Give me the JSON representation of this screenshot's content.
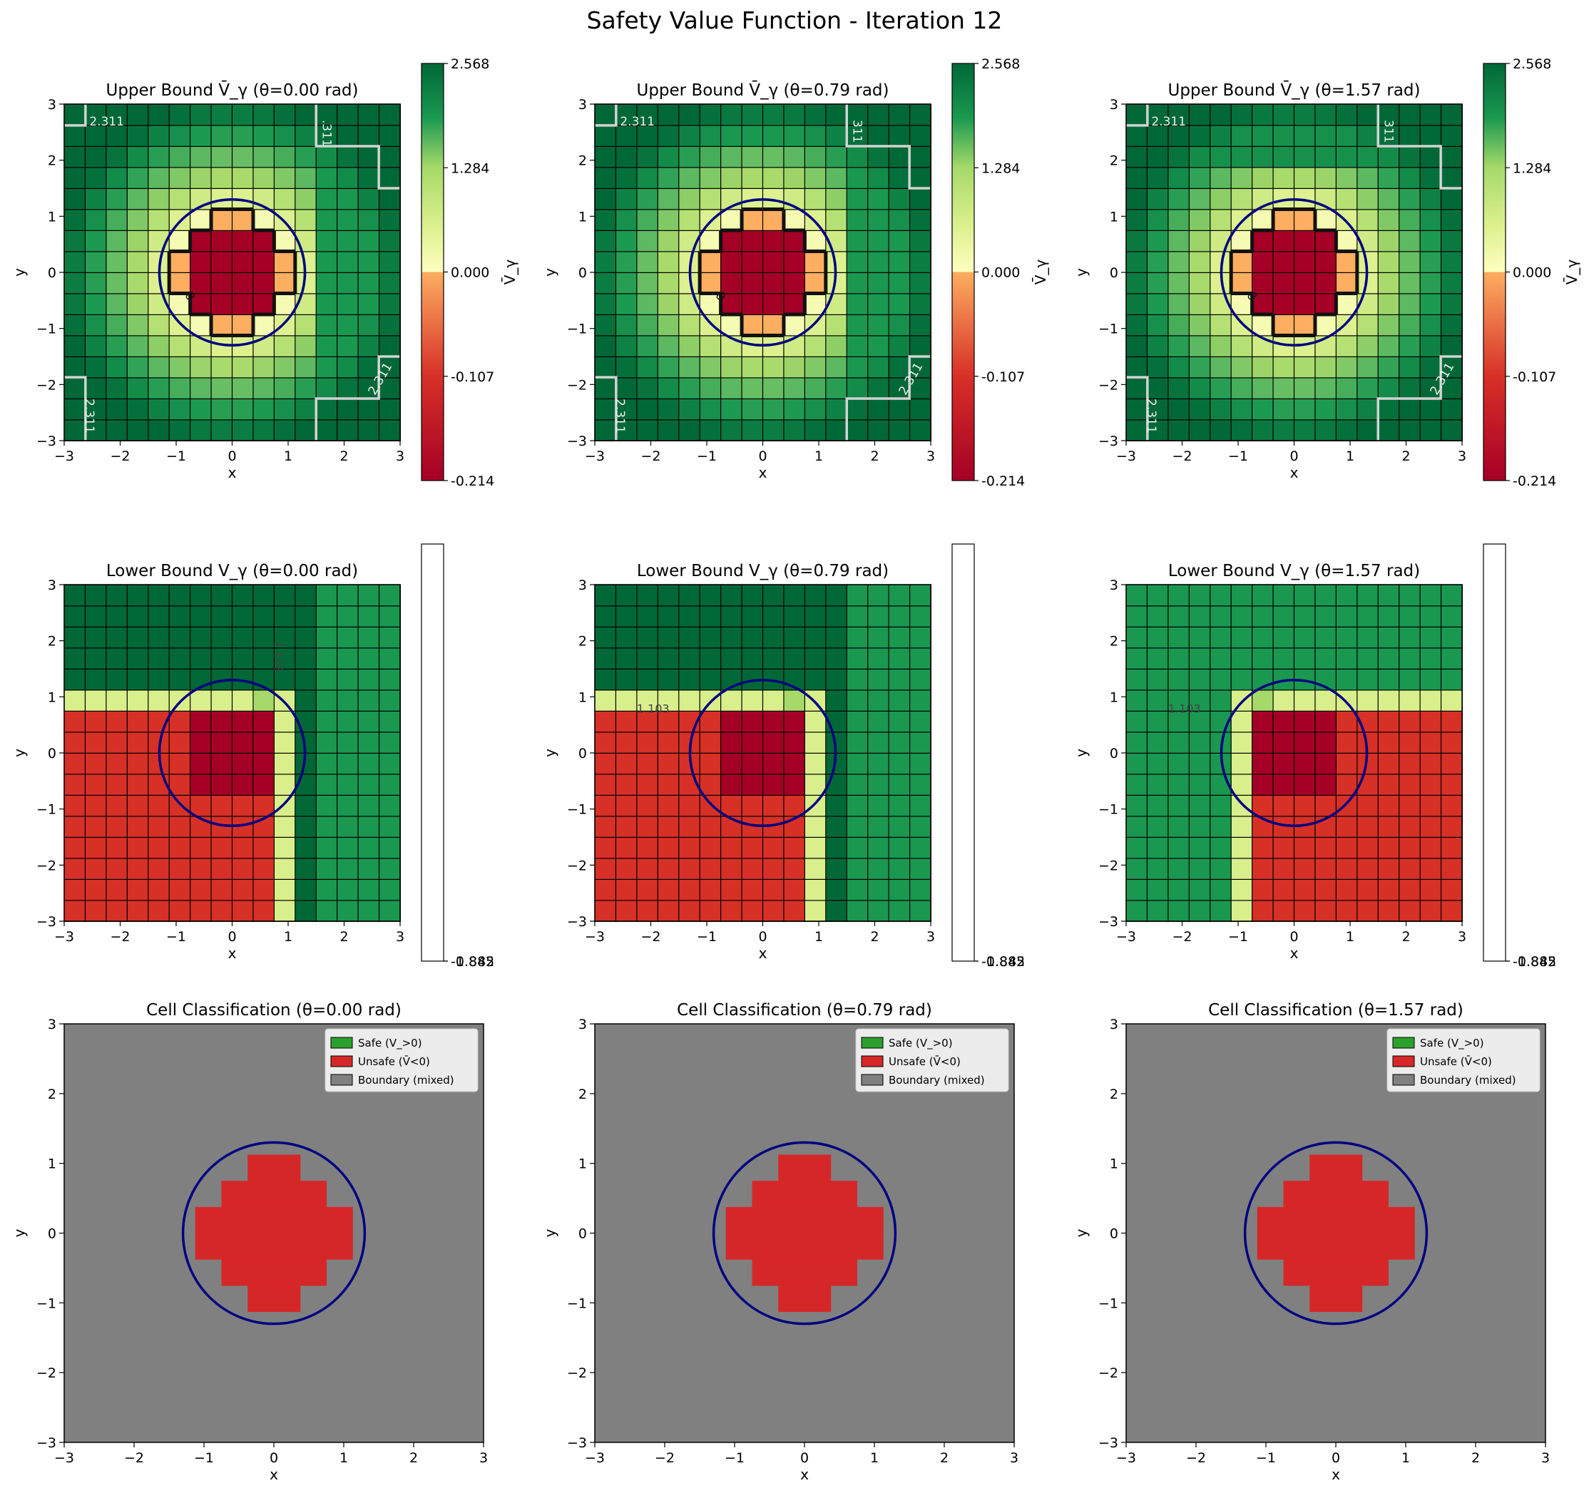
{
  "figure": {
    "title": "Safety Value Function - Iteration 12"
  },
  "colors": {
    "deep_red": "#a50026",
    "red": "#d73027",
    "orange": "#fdae61",
    "pale_yellow": "#ffffbf",
    "light_yellow_green": "#d9ef8b",
    "light_green": "#a6d96a",
    "green": "#66bd63",
    "mid_green": "#1a9850",
    "dark_green": "#006837",
    "safe": "#2ca02c",
    "unsafe": "#d62728",
    "boundary": "#808080",
    "obstacle_circle": "#000080",
    "grid_line": "#000000",
    "contour_line": "#d3d3d3"
  },
  "chart_data": [
    {
      "id": "upper-0",
      "type": "heatmap",
      "title": "Upper Bound V̄_γ (θ=0.00 rad)",
      "xlabel": "x",
      "ylabel": "y",
      "xlim": [
        -3,
        3
      ],
      "ylim": [
        -3,
        3
      ],
      "xticks": [
        "−3",
        "−2",
        "−1",
        "0",
        "1",
        "2",
        "3"
      ],
      "yticks": [
        "−3",
        "−2",
        "−1",
        "0",
        "1",
        "2",
        "3"
      ],
      "grid": "16x16 cells of width 0.375",
      "colorbar": {
        "label": "V̄_γ",
        "ticks": [
          "2.568",
          "1.284",
          "0.000",
          "-0.107",
          "-0.214"
        ]
      },
      "contour_labels": [
        "2.311",
        ".311",
        "2.311",
        "2.311",
        "0"
      ],
      "obstacle": {
        "cx": 0,
        "cy": 0,
        "r": 1.3
      }
    },
    {
      "id": "upper-1",
      "type": "heatmap",
      "title": "Upper Bound V̄_γ (θ=0.79 rad)",
      "xlabel": "x",
      "ylabel": "y",
      "xlim": [
        -3,
        3
      ],
      "ylim": [
        -3,
        3
      ],
      "xticks": [
        "−3",
        "−2",
        "−1",
        "0",
        "1",
        "2",
        "3"
      ],
      "yticks": [
        "−3",
        "−2",
        "−1",
        "0",
        "1",
        "2",
        "3"
      ],
      "grid": "16x16 cells of width 0.375",
      "colorbar": {
        "label": "V̄_γ",
        "ticks": [
          "2.568",
          "1.284",
          "0.000",
          "-0.107",
          "-0.214"
        ]
      },
      "contour_labels": [
        "2.311",
        "311",
        "2.311",
        "2.311",
        "0"
      ],
      "obstacle": {
        "cx": 0,
        "cy": 0,
        "r": 1.3
      }
    },
    {
      "id": "upper-2",
      "type": "heatmap",
      "title": "Upper Bound V̄_γ (θ=1.57 rad)",
      "xlabel": "x",
      "ylabel": "y",
      "xlim": [
        -3,
        3
      ],
      "ylim": [
        -3,
        3
      ],
      "xticks": [
        "−3",
        "−2",
        "−1",
        "0",
        "1",
        "2",
        "3"
      ],
      "yticks": [
        "−3",
        "−2",
        "−1",
        "0",
        "1",
        "2",
        "3"
      ],
      "grid": "16x16 cells of width 0.375",
      "colorbar": {
        "label": "V̄_γ",
        "ticks": [
          "2.568",
          "1.284",
          "0.000",
          "-0.107",
          "-0.214"
        ]
      },
      "contour_labels": [
        "2.311",
        "311",
        "2.311",
        "2.311",
        "0"
      ],
      "obstacle": {
        "cx": 0,
        "cy": 0,
        "r": 1.3
      }
    },
    {
      "id": "lower-0",
      "type": "heatmap",
      "title": "Lower Bound V_γ (θ=0.00 rad)",
      "xlabel": "x",
      "ylabel": "y",
      "xlim": [
        -3,
        3
      ],
      "ylim": [
        -3,
        3
      ],
      "xticks": [
        "−3",
        "−2",
        "−1",
        "0",
        "1",
        "2",
        "3"
      ],
      "yticks": [
        "−3",
        "−2",
        "−1",
        "0",
        "1",
        "2",
        "3"
      ],
      "colorbar": {
        "ticks": [
          "-0.885",
          "-1.842"
        ]
      },
      "contour_labels": [
        "1.103"
      ],
      "regions": "red for x<0.75 and y<0.75; dark red central block; green elsewhere",
      "obstacle": {
        "cx": 0,
        "cy": 0,
        "r": 1.3
      }
    },
    {
      "id": "lower-1",
      "type": "heatmap",
      "title": "Lower Bound V_γ (θ=0.79 rad)",
      "xlabel": "x",
      "ylabel": "y",
      "xlim": [
        -3,
        3
      ],
      "ylim": [
        -3,
        3
      ],
      "xticks": [
        "−3",
        "−2",
        "−1",
        "0",
        "1",
        "2",
        "3"
      ],
      "yticks": [
        "−3",
        "−2",
        "−1",
        "0",
        "1",
        "2",
        "3"
      ],
      "colorbar": {
        "ticks": [
          "-0.885",
          "-1.842"
        ]
      },
      "contour_labels": [
        "1.103"
      ],
      "regions": "red for x<0.75 and y<0.75; dark red central block; green elsewhere",
      "obstacle": {
        "cx": 0,
        "cy": 0,
        "r": 1.3
      }
    },
    {
      "id": "lower-2",
      "type": "heatmap",
      "title": "Lower Bound V_γ (θ=1.57 rad)",
      "xlabel": "x",
      "ylabel": "y",
      "xlim": [
        -3,
        3
      ],
      "ylim": [
        -3,
        3
      ],
      "xticks": [
        "−3",
        "−2",
        "−1",
        "0",
        "1",
        "2",
        "3"
      ],
      "yticks": [
        "−3",
        "−2",
        "−1",
        "0",
        "1",
        "2",
        "3"
      ],
      "colorbar": {
        "ticks": [
          "-0.885",
          "-1.842"
        ]
      },
      "contour_labels": [
        "1.103"
      ],
      "regions": "red for x>-0.75 and y<0.75; dark red central block; green elsewhere",
      "obstacle": {
        "cx": 0,
        "cy": 0,
        "r": 1.3
      }
    },
    {
      "id": "class-0",
      "type": "heatmap",
      "title": "Cell Classification (θ=0.00 rad)",
      "xlabel": "x",
      "ylabel": "y",
      "xlim": [
        -3,
        3
      ],
      "ylim": [
        -3,
        3
      ],
      "xticks": [
        "−3",
        "−2",
        "−1",
        "0",
        "1",
        "2",
        "3"
      ],
      "yticks": [
        "−3",
        "−2",
        "−1",
        "0",
        "1",
        "2",
        "3"
      ],
      "legend": [
        "Safe (V_>0)",
        "Unsafe (V̄<0)",
        "Boundary (mixed)"
      ],
      "legend_position": "top-right",
      "unsafe_cells": "cross-shaped region of 0.375 cells, |x|,|y| <= 1.125",
      "obstacle": {
        "cx": 0,
        "cy": 0,
        "r": 1.3
      }
    },
    {
      "id": "class-1",
      "type": "heatmap",
      "title": "Cell Classification (θ=0.79 rad)",
      "xlabel": "x",
      "ylabel": "y",
      "xlim": [
        -3,
        3
      ],
      "ylim": [
        -3,
        3
      ],
      "xticks": [
        "−3",
        "−2",
        "−1",
        "0",
        "1",
        "2",
        "3"
      ],
      "yticks": [
        "−3",
        "−2",
        "−1",
        "0",
        "1",
        "2",
        "3"
      ],
      "legend": [
        "Safe (V_>0)",
        "Unsafe (V̄<0)",
        "Boundary (mixed)"
      ],
      "legend_position": "top-right",
      "unsafe_cells": "cross-shaped region of 0.375 cells, |x|,|y| <= 1.125",
      "obstacle": {
        "cx": 0,
        "cy": 0,
        "r": 1.3
      }
    },
    {
      "id": "class-2",
      "type": "heatmap",
      "title": "Cell Classification (θ=1.57 rad)",
      "xlabel": "x",
      "ylabel": "y",
      "xlim": [
        -3,
        3
      ],
      "ylim": [
        -3,
        3
      ],
      "xticks": [
        "−3",
        "−2",
        "−1",
        "0",
        "1",
        "2",
        "3"
      ],
      "yticks": [
        "−3",
        "−2",
        "−1",
        "0",
        "1",
        "2",
        "3"
      ],
      "legend": [
        "Safe (V_>0)",
        "Unsafe (V̄<0)",
        "Boundary (mixed)"
      ],
      "legend_position": "top-right",
      "unsafe_cells": "cross-shaped region of 0.375 cells, |x|,|y| <= 1.125",
      "obstacle": {
        "cx": 0,
        "cy": 0,
        "r": 1.3
      }
    }
  ]
}
